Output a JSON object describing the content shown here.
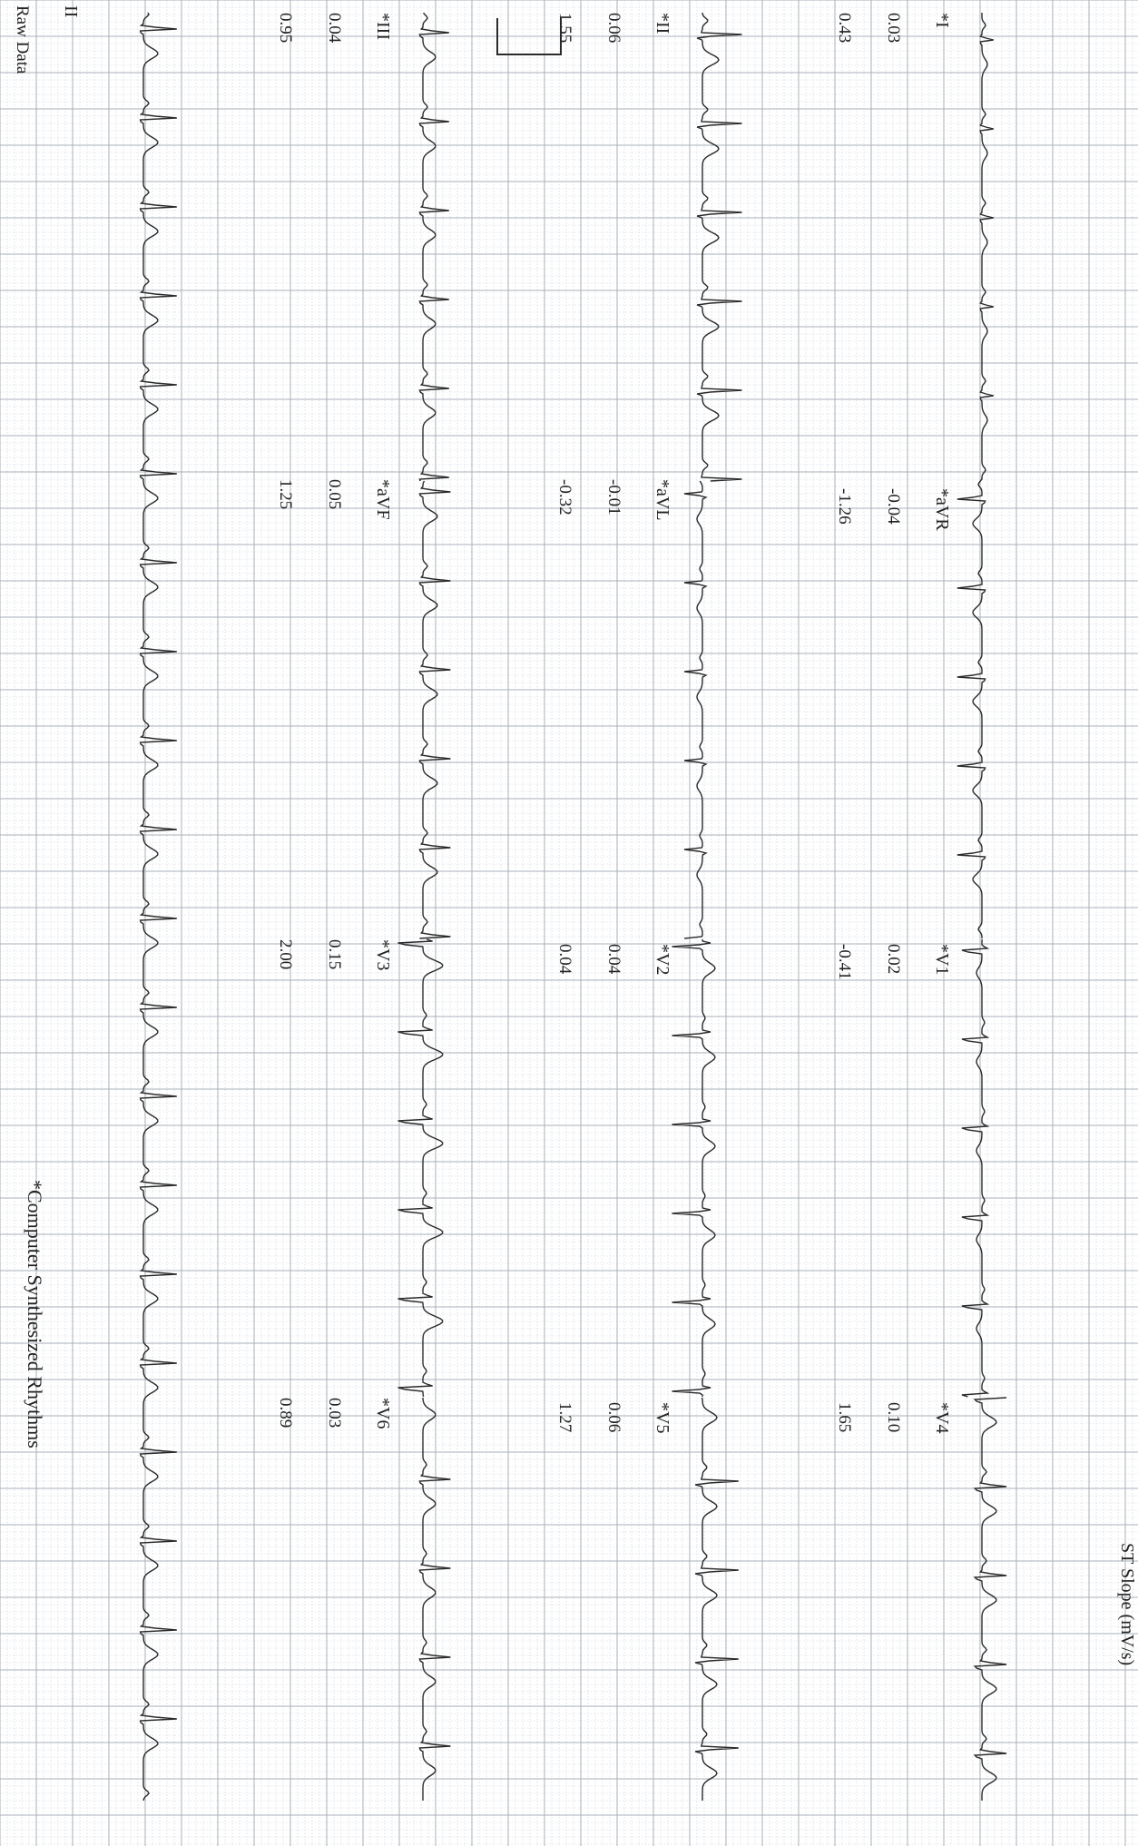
{
  "header": {
    "st_slope_label": "ST Slope (mV/s)"
  },
  "rows": [
    {
      "leads": [
        {
          "name": "*I",
          "v1": "0.03",
          "v2": "0.43"
        },
        {
          "name": "*aVR",
          "v1": "-0.04",
          "v2": "-1.26"
        },
        {
          "name": "*V1",
          "v1": "0.02",
          "v2": "-0.41"
        },
        {
          "name": "*V4",
          "v1": "0.10",
          "v2": "1.65"
        }
      ]
    },
    {
      "leads": [
        {
          "name": "*II",
          "v1": "0.06",
          "v2": "1.55"
        },
        {
          "name": "*aVL",
          "v1": "-0.01",
          "v2": "-0.32"
        },
        {
          "name": "*V2",
          "v1": "0.04",
          "v2": "0.04"
        },
        {
          "name": "*V5",
          "v1": "0.06",
          "v2": "1.27"
        }
      ]
    },
    {
      "leads": [
        {
          "name": "*III",
          "v1": "0.04",
          "v2": "0.95"
        },
        {
          "name": "*aVF",
          "v1": "0.05",
          "v2": "1.25"
        },
        {
          "name": "*V3",
          "v1": "0.15",
          "v2": "2.00"
        },
        {
          "name": "*V6",
          "v1": "0.03",
          "v2": "0.89"
        }
      ]
    }
  ],
  "rhythm": {
    "lead": "II",
    "label": "Raw Data"
  },
  "footer": {
    "note": "*Computer Synthesized Rhythms"
  },
  "colors": {
    "grid_minor": "#c9cfd6",
    "grid_major": "#a9b1ba",
    "trace": "#2a2a2a"
  }
}
